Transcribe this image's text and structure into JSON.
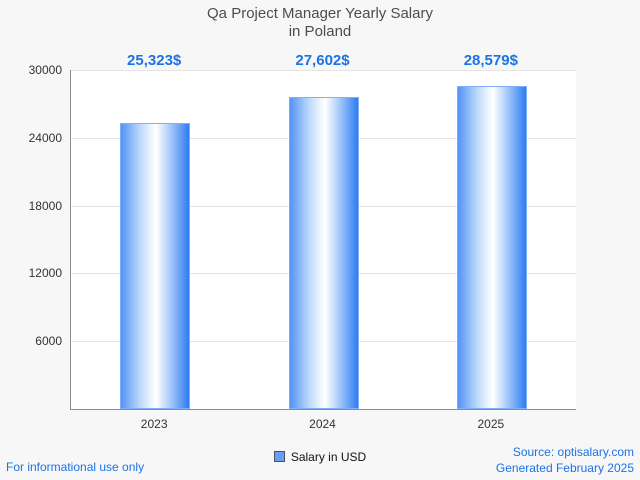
{
  "header": {
    "title_line1": "Qa Project Manager Yearly Salary",
    "title_line2": "in Poland"
  },
  "chart_data": {
    "type": "bar",
    "title": "Qa Project Manager Yearly Salary in Poland",
    "categories": [
      "2023",
      "2024",
      "2025"
    ],
    "values": [
      25323,
      27602,
      28579
    ],
    "value_labels": [
      "25,323$",
      "27,602$",
      "28,579$"
    ],
    "series_name": "Salary in USD",
    "xlabel": "",
    "ylabel": "",
    "ylim": [
      0,
      30000
    ],
    "yticks": [
      6000,
      12000,
      18000,
      24000,
      30000
    ],
    "grid": true,
    "legend_position": "bottom"
  },
  "legend": {
    "label": "Salary in USD"
  },
  "footer": {
    "disclaimer": "For informational use only",
    "source": "Source: optisalary.com",
    "generated": "Generated February 2025"
  },
  "colors": {
    "accent_blue": "#1a73e8",
    "bar_edge_blue": "#2e7cf4",
    "bar_mid": "#ffffff",
    "title_gray": "#4d4d4d",
    "gridline": "#e4e4e4",
    "background": "#f7f7f7"
  }
}
